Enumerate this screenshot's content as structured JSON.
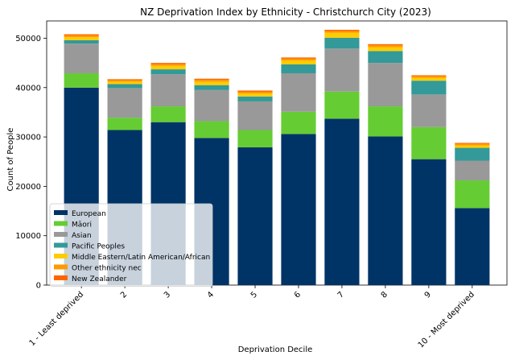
{
  "chart_data": {
    "type": "bar",
    "stacked": true,
    "title": "NZ Deprivation Index by Ethnicity - Christchurch City (2023)",
    "xlabel": "Deprivation Decile",
    "ylabel": "Count of People",
    "ylim": [
      0,
      53500
    ],
    "yticks": [
      0,
      10000,
      20000,
      30000,
      40000,
      50000
    ],
    "legend_position": "lower-left",
    "categories": [
      "1 - Least deprived",
      "2",
      "3",
      "4",
      "5",
      "6",
      "7",
      "8",
      "9",
      "10 - Most deprived"
    ],
    "series": [
      {
        "name": "European",
        "color": "#003366",
        "values": [
          40000,
          31400,
          33000,
          29800,
          27900,
          30600,
          33700,
          30100,
          25500,
          15600
        ]
      },
      {
        "name": "Māori",
        "color": "#66cc33",
        "values": [
          2900,
          2500,
          3200,
          3400,
          3500,
          4500,
          5500,
          6100,
          6500,
          5600
        ]
      },
      {
        "name": "Asian",
        "color": "#999999",
        "values": [
          6000,
          6000,
          6500,
          6300,
          5800,
          7800,
          8700,
          8800,
          6600,
          4000
        ]
      },
      {
        "name": "Pacific Peoples",
        "color": "#339999",
        "values": [
          700,
          800,
          1000,
          1000,
          1000,
          1800,
          2200,
          2400,
          2800,
          2600
        ]
      },
      {
        "name": "Middle Eastern/Latin American/African",
        "color": "#ffcc00",
        "values": [
          600,
          500,
          700,
          700,
          600,
          800,
          1000,
          800,
          600,
          500
        ]
      },
      {
        "name": "Other ethnicity nec",
        "color": "#ff9900",
        "values": [
          350,
          300,
          350,
          350,
          350,
          350,
          350,
          350,
          300,
          300
        ]
      },
      {
        "name": "New Zealander",
        "color": "#ff6600",
        "values": [
          250,
          200,
          250,
          250,
          250,
          250,
          250,
          250,
          200,
          200
        ]
      }
    ]
  }
}
